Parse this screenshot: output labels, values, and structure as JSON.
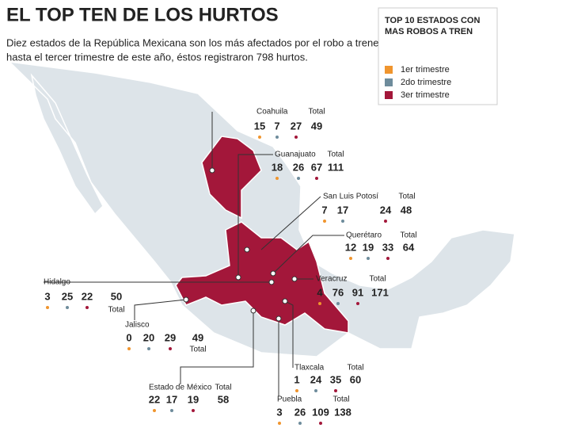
{
  "header": {
    "title": "EL TOP TEN DE LOS HURTOS",
    "subtitle_lines": [
      "Diez estados de la República Mexicana son los más afectados por el robo a trenes;",
      "hasta el tercer trimestre de este año, éstos registraron 798 hurtos."
    ]
  },
  "legend": {
    "title_lines": [
      "TOP 10 ESTADOS CON",
      "MAS ROBOS A TREN"
    ],
    "items": [
      {
        "label": "1er trimestre",
        "color": "#f0952e"
      },
      {
        "label": "2do trimestre",
        "color": "#6e8c9c"
      },
      {
        "label": "3er trimestre",
        "color": "#a3173a"
      }
    ]
  },
  "total_label": "Total",
  "states": [
    {
      "name": "Coahuila",
      "values": [
        15,
        7,
        27
      ],
      "total": 49
    },
    {
      "name": "Guanajuato",
      "values": [
        18,
        26,
        67
      ],
      "total": 111
    },
    {
      "name": "San Luis Potosí",
      "values": [
        7,
        17,
        24
      ],
      "total": 48
    },
    {
      "name": "Querétaro",
      "values": [
        12,
        19,
        33
      ],
      "total": 64
    },
    {
      "name": "Veracruz",
      "values": [
        4,
        76,
        91
      ],
      "total": 171
    },
    {
      "name": "Hidalgo",
      "values": [
        3,
        25,
        22
      ],
      "total": 50
    },
    {
      "name": "Jalisco",
      "values": [
        0,
        20,
        29
      ],
      "total": 49
    },
    {
      "name": "Estado de México",
      "values": [
        22,
        17,
        19
      ],
      "total": 58
    },
    {
      "name": "Tlaxcala",
      "values": [
        1,
        24,
        35
      ],
      "total": 60
    },
    {
      "name": "Puebla",
      "values": [
        3,
        26,
        109
      ],
      "total": 138
    }
  ]
}
